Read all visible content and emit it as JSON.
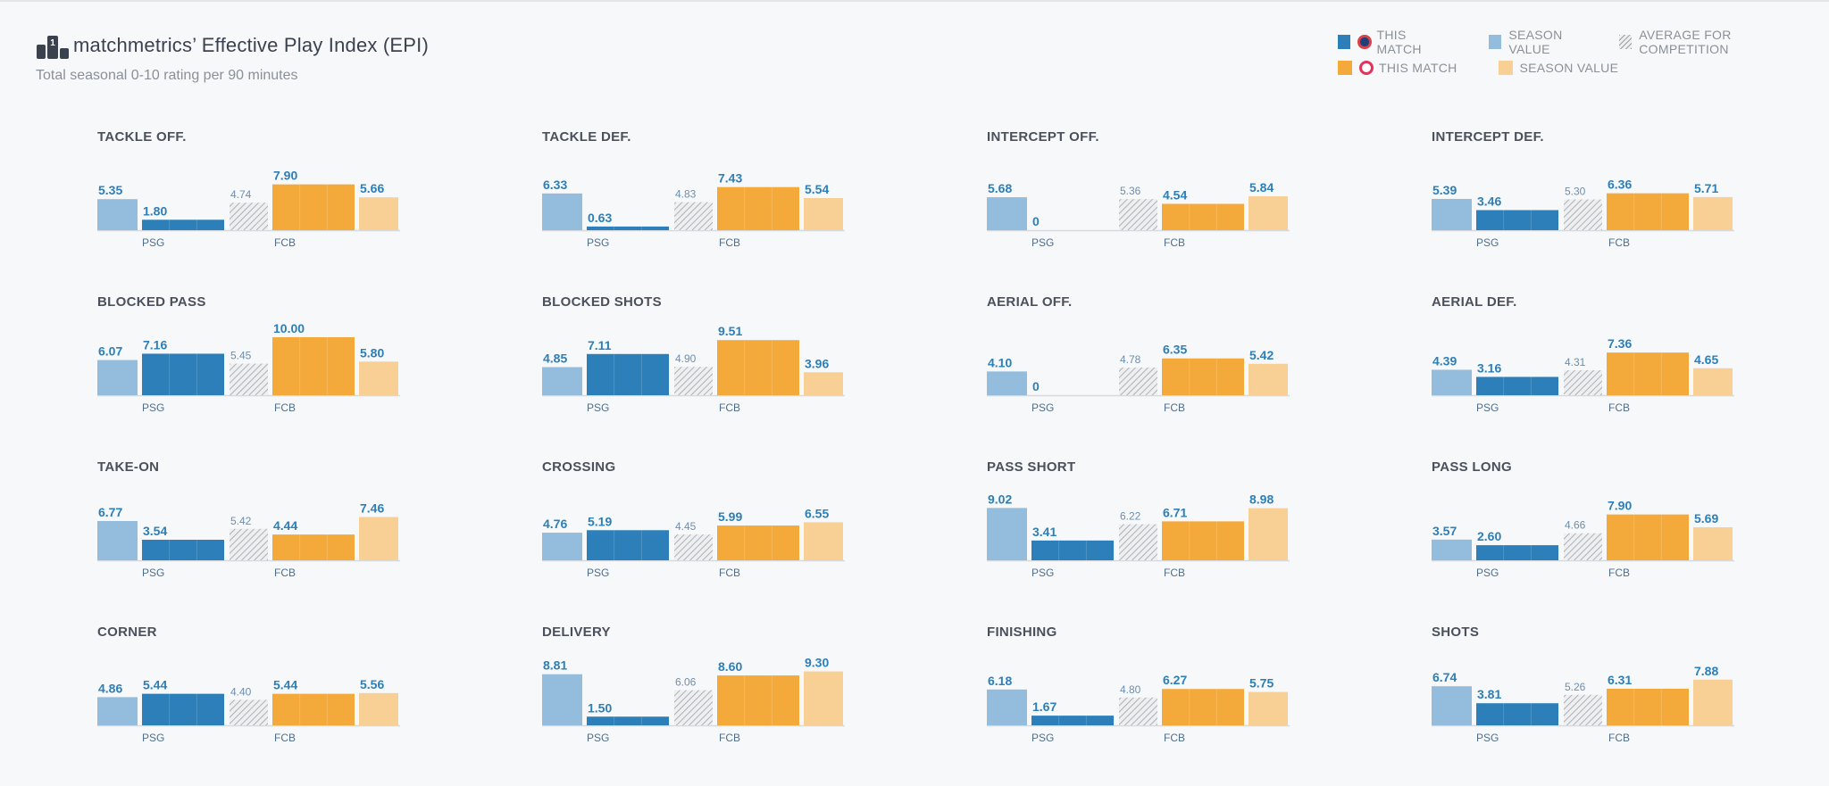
{
  "header": {
    "title": "matchmetrics’ Effective Play Index (EPI)",
    "subtitle": "Total seasonal 0-10 rating per 90 minutes"
  },
  "legend": {
    "psg_match": "THIS MATCH",
    "psg_season": "SEASON VALUE",
    "average": "AVERAGE FOR COMPETITION",
    "fcb_match": "THIS MATCH",
    "fcb_season": "SEASON VALUE"
  },
  "colors": {
    "psg_match": "#2c7fb8",
    "psg_season": "#94bcdc",
    "fcb_match": "#f4a93b",
    "fcb_season": "#f8cf94",
    "average_hatch": "#9ca1a8",
    "value_text": "#2c7fb8"
  },
  "chart_data": {
    "type": "bar",
    "teams": [
      "PSG",
      "FCB"
    ],
    "ylim": [
      0,
      10
    ],
    "series_order": [
      "PSG season value",
      "PSG this match",
      "competition average",
      "FCB this match",
      "FCB season value"
    ],
    "panels": [
      {
        "title": "TACKLE OFF.",
        "psg_season": 5.35,
        "psg_match": 1.8,
        "avg": 4.74,
        "fcb_match": 7.9,
        "fcb_season": 5.66
      },
      {
        "title": "TACKLE DEF.",
        "psg_season": 6.33,
        "psg_match": 0.63,
        "avg": 4.83,
        "fcb_match": 7.43,
        "fcb_season": 5.54
      },
      {
        "title": "INTERCEPT OFF.",
        "psg_season": 5.68,
        "psg_match": 0,
        "avg": 5.36,
        "fcb_match": 4.54,
        "fcb_season": 5.84
      },
      {
        "title": "INTERCEPT DEF.",
        "psg_season": 5.39,
        "psg_match": 3.46,
        "avg": 5.3,
        "fcb_match": 6.36,
        "fcb_season": 5.71
      },
      {
        "title": "BLOCKED PASS",
        "psg_season": 6.07,
        "psg_match": 7.16,
        "avg": 5.45,
        "fcb_match": 10.0,
        "fcb_season": 5.8
      },
      {
        "title": "BLOCKED SHOTS",
        "psg_season": 4.85,
        "psg_match": 7.11,
        "avg": 4.9,
        "fcb_match": 9.51,
        "fcb_season": 3.96
      },
      {
        "title": "AERIAL OFF.",
        "psg_season": 4.1,
        "psg_match": 0,
        "avg": 4.78,
        "fcb_match": 6.35,
        "fcb_season": 5.42
      },
      {
        "title": "AERIAL DEF.",
        "psg_season": 4.39,
        "psg_match": 3.16,
        "avg": 4.31,
        "fcb_match": 7.36,
        "fcb_season": 4.65
      },
      {
        "title": "TAKE-ON",
        "psg_season": 6.77,
        "psg_match": 3.54,
        "avg": 5.42,
        "fcb_match": 4.44,
        "fcb_season": 7.46
      },
      {
        "title": "CROSSING",
        "psg_season": 4.76,
        "psg_match": 5.19,
        "avg": 4.45,
        "fcb_match": 5.99,
        "fcb_season": 6.55
      },
      {
        "title": "PASS SHORT",
        "psg_season": 9.02,
        "psg_match": 3.41,
        "avg": 6.22,
        "fcb_match": 6.71,
        "fcb_season": 8.98
      },
      {
        "title": "PASS LONG",
        "psg_season": 3.57,
        "psg_match": 2.6,
        "avg": 4.66,
        "fcb_match": 7.9,
        "fcb_season": 5.69
      },
      {
        "title": "CORNER",
        "psg_season": 4.86,
        "psg_match": 5.44,
        "avg": 4.4,
        "fcb_match": 5.44,
        "fcb_season": 5.56
      },
      {
        "title": "DELIVERY",
        "psg_season": 8.81,
        "psg_match": 1.5,
        "avg": 6.06,
        "fcb_match": 8.6,
        "fcb_season": 9.3
      },
      {
        "title": "FINISHING",
        "psg_season": 6.18,
        "psg_match": 1.67,
        "avg": 4.8,
        "fcb_match": 6.27,
        "fcb_season": 5.75
      },
      {
        "title": "SHOTS",
        "psg_season": 6.74,
        "psg_match": 3.81,
        "avg": 5.26,
        "fcb_match": 6.31,
        "fcb_season": 7.88
      }
    ]
  }
}
